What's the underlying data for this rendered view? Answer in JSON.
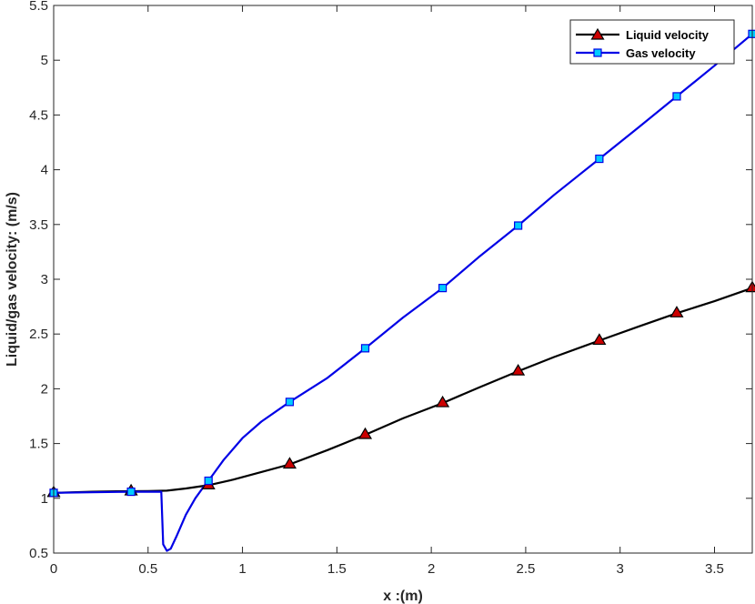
{
  "chart_data": {
    "type": "line",
    "xlabel": "x :(m)",
    "ylabel": "Liquid/gas velocity: (m/s)",
    "xlim": [
      0,
      3.7
    ],
    "ylim": [
      0.5,
      5.5
    ],
    "xticks": [
      0,
      0.5,
      1,
      1.5,
      2,
      2.5,
      3,
      3.5
    ],
    "xtick_labels": [
      "0",
      "0.5",
      "1",
      "1.5",
      "2",
      "2.5",
      "3",
      "3.5"
    ],
    "yticks": [
      0.5,
      1,
      1.5,
      2,
      2.5,
      3,
      3.5,
      4,
      4.5,
      5,
      5.5
    ],
    "ytick_labels": [
      "0.5",
      "1",
      "1.5",
      "2",
      "2.5",
      "3",
      "3.5",
      "4",
      "4.5",
      "5",
      "5.5"
    ],
    "grid": false,
    "legend_position": "top-right",
    "series": [
      {
        "name": "Liquid velocity",
        "color": "#000000",
        "marker": "triangle",
        "marker_fill": "#cc0000",
        "x": [
          0,
          0.1,
          0.2,
          0.3,
          0.41,
          0.5,
          0.6,
          0.7,
          0.82,
          0.95,
          1.1,
          1.25,
          1.45,
          1.65,
          1.85,
          2.06,
          2.25,
          2.46,
          2.65,
          2.89,
          3.1,
          3.3,
          3.5,
          3.7
        ],
        "y": [
          1.05,
          1.055,
          1.06,
          1.063,
          1.065,
          1.066,
          1.07,
          1.09,
          1.12,
          1.17,
          1.24,
          1.31,
          1.44,
          1.58,
          1.73,
          1.87,
          2.01,
          2.16,
          2.29,
          2.44,
          2.57,
          2.69,
          2.8,
          2.92
        ],
        "marker_x": [
          0,
          0.41,
          0.82,
          1.25,
          1.65,
          2.06,
          2.46,
          2.89,
          3.3,
          3.7
        ],
        "marker_y": [
          1.05,
          1.065,
          1.12,
          1.31,
          1.58,
          1.87,
          2.16,
          2.44,
          2.69,
          2.92
        ]
      },
      {
        "name": "Gas velocity",
        "color": "#0000e6",
        "marker": "square",
        "marker_fill": "#00ccff",
        "x": [
          0,
          0.2,
          0.41,
          0.57,
          0.58,
          0.6,
          0.62,
          0.65,
          0.7,
          0.75,
          0.8,
          0.82,
          0.9,
          1.0,
          1.1,
          1.25,
          1.45,
          1.65,
          1.85,
          2.06,
          2.25,
          2.46,
          2.65,
          2.89,
          3.1,
          3.3,
          3.5,
          3.7
        ],
        "y": [
          1.05,
          1.055,
          1.06,
          1.06,
          0.58,
          0.52,
          0.54,
          0.65,
          0.85,
          1.0,
          1.12,
          1.16,
          1.35,
          1.55,
          1.7,
          1.88,
          2.1,
          2.37,
          2.65,
          2.92,
          3.2,
          3.49,
          3.77,
          4.1,
          4.39,
          4.67,
          4.95,
          5.24
        ],
        "marker_x": [
          0,
          0.41,
          0.82,
          1.25,
          1.65,
          2.06,
          2.46,
          2.89,
          3.3,
          3.7
        ],
        "marker_y": [
          1.05,
          1.06,
          1.16,
          1.88,
          2.37,
          2.92,
          3.49,
          4.1,
          4.67,
          5.24
        ]
      }
    ]
  }
}
